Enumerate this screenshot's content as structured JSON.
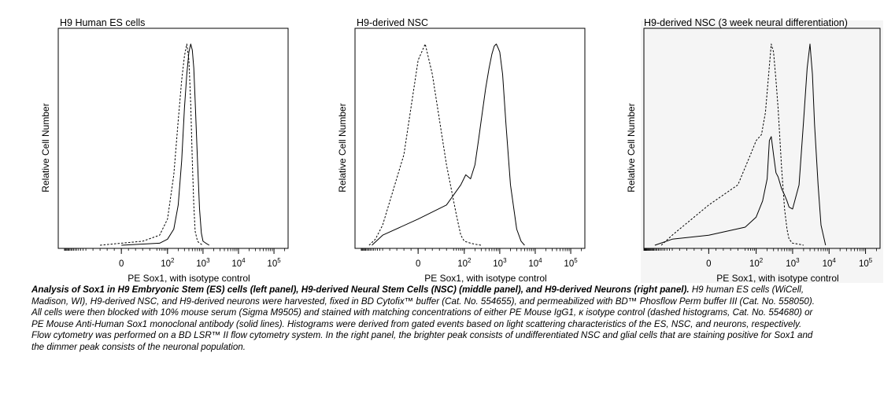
{
  "chart_data": [
    {
      "type": "histogram",
      "title": "H9 Human ES cells",
      "xlabel": "PE Sox1, with isotype control",
      "ylabel": "Relative Cell Number",
      "x_scale": "biexponential",
      "x_ticks": [
        "0",
        "10^2",
        "10^3",
        "10^4",
        "10^5"
      ],
      "series": [
        {
          "style": "dashed",
          "x": [
            -30,
            0,
            30,
            60,
            100,
            150,
            200,
            250,
            300,
            350,
            400,
            450,
            500,
            550,
            600,
            700,
            800,
            1000
          ],
          "y": [
            0,
            0.01,
            0.02,
            0.05,
            0.13,
            0.35,
            0.62,
            0.82,
            0.94,
            1.0,
            0.92,
            0.7,
            0.42,
            0.2,
            0.07,
            0.02,
            0.01,
            0
          ]
        },
        {
          "style": "solid",
          "x": [
            0,
            60,
            100,
            150,
            200,
            250,
            300,
            350,
            400,
            450,
            500,
            550,
            600,
            700,
            800,
            900,
            1000,
            1200,
            1500
          ],
          "y": [
            0,
            0.01,
            0.03,
            0.08,
            0.2,
            0.42,
            0.68,
            0.85,
            0.96,
            1.0,
            0.97,
            0.88,
            0.72,
            0.42,
            0.18,
            0.06,
            0.02,
            0.01,
            0
          ]
        }
      ]
    },
    {
      "type": "histogram",
      "title": "H9-derived NSC",
      "xlabel": "PE Sox1, with isotype control",
      "ylabel": "Relative Cell Number",
      "x_scale": "biexponential",
      "x_ticks": [
        "0",
        "10^2",
        "10^3",
        "10^4",
        "10^5"
      ],
      "series": [
        {
          "style": "dashed",
          "x": [
            -120,
            -80,
            -50,
            -20,
            0,
            10,
            20,
            40,
            60,
            80,
            100,
            150,
            200,
            300
          ],
          "y": [
            0,
            0.03,
            0.1,
            0.45,
            0.92,
            1.0,
            0.85,
            0.4,
            0.15,
            0.05,
            0.02,
            0.01,
            0.005,
            0
          ]
        },
        {
          "style": "solid",
          "x": [
            -100,
            -50,
            0,
            40,
            80,
            110,
            150,
            200,
            250,
            300,
            400,
            500,
            600,
            700,
            800,
            900,
            1000,
            1200,
            1500,
            2000,
            3000,
            4000,
            5000
          ],
          "y": [
            0,
            0.05,
            0.13,
            0.2,
            0.3,
            0.35,
            0.33,
            0.4,
            0.52,
            0.62,
            0.78,
            0.88,
            0.95,
            0.99,
            1.0,
            0.98,
            0.96,
            0.85,
            0.6,
            0.3,
            0.08,
            0.02,
            0
          ]
        }
      ]
    },
    {
      "type": "histogram",
      "title": "H9-derived NSC (3 week neural differentiation)",
      "xlabel": "PE Sox1, with isotype control",
      "ylabel": "Relative Cell Number",
      "x_scale": "biexponential",
      "x_ticks": [
        "0",
        "10^2",
        "10^3",
        "10^4",
        "10^5"
      ],
      "series": [
        {
          "style": "dashed",
          "x": [
            -100,
            -50,
            0,
            40,
            70,
            100,
            140,
            180,
            220,
            260,
            300,
            350,
            400,
            450,
            500,
            600,
            700,
            800,
            1000,
            1500,
            2000
          ],
          "y": [
            0,
            0.05,
            0.2,
            0.3,
            0.45,
            0.52,
            0.55,
            0.66,
            0.85,
            1.0,
            0.96,
            0.82,
            0.68,
            0.52,
            0.38,
            0.18,
            0.08,
            0.03,
            0.01,
            0.005,
            0
          ]
        },
        {
          "style": "solid",
          "x": [
            -150,
            -50,
            0,
            50,
            100,
            150,
            200,
            230,
            260,
            300,
            350,
            400,
            500,
            600,
            700,
            800,
            1000,
            1500,
            2000,
            2500,
            3000,
            3500,
            4000,
            5000,
            6000,
            8000
          ],
          "y": [
            0,
            0.03,
            0.05,
            0.09,
            0.14,
            0.22,
            0.33,
            0.52,
            0.54,
            0.45,
            0.36,
            0.34,
            0.28,
            0.25,
            0.22,
            0.19,
            0.18,
            0.3,
            0.62,
            0.88,
            1.0,
            0.85,
            0.6,
            0.3,
            0.1,
            0
          ]
        }
      ]
    }
  ],
  "caption": {
    "bold": "Analysis of Sox1 in H9 Embryonic Stem (ES) cells (left panel), H9-derived Neural Stem Cells (NSC) (middle panel), and H9-derived Neurons (right panel).",
    "body": "H9 human ES cells (WiCell, Madison, WI), H9-derived NSC, and H9-derived neurons were harvested, fixed in BD Cytofix™ buffer (Cat. No. 554655), and permeabilized with BD™ Phosflow Perm buffer III (Cat. No. 558050). All cells were then blocked with 10% mouse serum (Sigma M9505) and stained with matching concentrations of either PE Mouse IgG1, κ isotype control (dashed histograms, Cat. No. 554680) or PE Mouse Anti-Human Sox1 monoclonal antibody (solid lines). Histograms were derived from gated events based on light scattering characteristics of the ES, NSC, and neurons, respectively. Flow cytometry was performed on a BD LSR™ II flow cytometry system. In the right panel, the brighter peak consists of undifferentiated NSC and glial cells that are staining positive for Sox1 and the dimmer peak consists of the neuronal population."
  }
}
